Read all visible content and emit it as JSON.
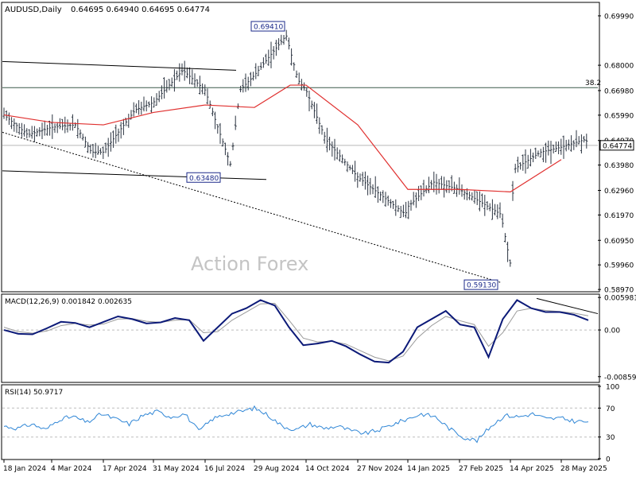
{
  "header": {
    "symbol": "AUDUSD,Daily",
    "ohlc": "0.64695 0.64940 0.64695 0.64774"
  },
  "watermark": "Action Forex",
  "colors": {
    "bars": "#2b3440",
    "ma": "#e0302f",
    "macd": "#0c1a78",
    "signal": "#9a9a9a",
    "rsi": "#2f86d6",
    "grid_dash": "#bdbdbd",
    "label_border": "#1b2a8a",
    "current_bg": "#ffffff"
  },
  "chart_data": [
    {
      "type": "ohlc",
      "title": "AUDUSD,Daily",
      "ylim": [
        0.5891,
        0.705
      ],
      "y_tick_labels": [
        "0.69990",
        "0.68000",
        "0.66980",
        "0.65990",
        "0.64970",
        "0.63980",
        "0.62960",
        "0.61970",
        "0.60950",
        "0.59960",
        "0.58970"
      ],
      "x_tick_labels": [
        "18 Jan 2024",
        "4 Mar 2024",
        "17 Apr 2024",
        "31 May 2024",
        "16 Jul 2024",
        "29 Aug 2024",
        "14 Oct 2024",
        "27 Nov 2024",
        "14 Jan 2025",
        "27 Feb 2025",
        "14 Apr 2025",
        "28 May 2025"
      ],
      "close_path": [
        [
          "18 Jan 2024",
          0.66
        ],
        [
          "Feb 2024",
          0.652
        ],
        [
          "4 Mar 2024",
          0.655
        ],
        [
          "Mar 2024",
          0.656
        ],
        [
          "Apr 2024",
          0.645
        ],
        [
          "17 Apr 2024",
          0.645
        ],
        [
          "May 2024",
          0.662
        ],
        [
          "31 May 2024",
          0.665
        ],
        [
          "Jul 2024",
          0.678
        ],
        [
          "16 Jul 2024",
          0.67
        ],
        [
          "Aug 2024",
          0.64
        ],
        [
          "Aug 2024",
          0.67
        ],
        [
          "29 Aug 2024",
          0.676
        ],
        [
          "Sep 2024",
          0.692
        ],
        [
          "Oct 2024",
          0.674
        ],
        [
          "14 Oct 2024",
          0.67
        ],
        [
          "Nov 2024",
          0.65
        ],
        [
          "27 Nov 2024",
          0.635
        ],
        [
          "Dec 2024",
          0.62
        ],
        [
          "14 Jan 2025",
          0.623
        ],
        [
          "Feb 2025",
          0.633
        ],
        [
          "27 Feb 2025",
          0.63
        ],
        [
          "Apr 2025",
          0.62
        ],
        [
          "Apr 2025",
          0.6
        ],
        [
          "14 Apr 2025",
          0.638
        ],
        [
          "May 2025",
          0.645
        ],
        [
          "28 May 2025",
          0.647
        ],
        [
          "Jun 2025",
          0.65
        ],
        [
          "Jun 2025",
          0.6477
        ]
      ],
      "moving_average_path": [
        [
          "18 Jan 2024",
          0.66
        ],
        [
          "4 Mar 2024",
          0.657
        ],
        [
          "17 Apr 2024",
          0.656
        ],
        [
          "31 May 2024",
          0.661
        ],
        [
          "16 Jul 2024",
          0.664
        ],
        [
          "29 Aug 2024",
          0.663
        ],
        [
          "Sep 2024",
          0.672
        ],
        [
          "14 Oct 2024",
          0.672
        ],
        [
          "27 Nov 2024",
          0.656
        ],
        [
          "14 Jan 2025",
          0.63
        ],
        [
          "27 Feb 2025",
          0.63
        ],
        [
          "14 Apr 2025",
          0.629
        ],
        [
          "28 May 2025",
          0.642
        ]
      ],
      "levels": {
        "fib_38_2": 0.671,
        "current": 0.64774
      },
      "level_labels": {
        "fib": "38.2",
        "current": "0.64774"
      },
      "annotations": [
        {
          "label": "0.69410",
          "x": "Sep 2024",
          "y": 0.6941
        },
        {
          "label": "0.63480",
          "x": "Jul 2024",
          "y": 0.6348
        },
        {
          "label": "0.59130",
          "x": "Apr 2025",
          "y": 0.5913
        }
      ],
      "trendlines": [
        {
          "style": "solid",
          "from": [
            "18 Jan 2024",
            0.6815
          ],
          "to": [
            "Aug 2024",
            0.678
          ]
        },
        {
          "style": "solid",
          "from": [
            "18 Jan 2024",
            0.6375
          ],
          "to": [
            "Sep 2024",
            0.634
          ]
        },
        {
          "style": "dashed",
          "from": [
            "18 Jan 2024",
            0.653
          ],
          "to": [
            "Apr 2025",
            0.5925
          ]
        }
      ]
    },
    {
      "type": "line",
      "title": "MACD(12,26,9) 0.001842 0.002635",
      "ylim": [
        -0.0095,
        0.0063
      ],
      "y_tick_labels": [
        "0.005981",
        "0.00",
        "-0.00859"
      ],
      "series": [
        {
          "name": "MACD",
          "values": [
            0.0,
            -0.0007,
            -0.0008,
            0.0003,
            0.0015,
            0.0013,
            0.0005,
            0.0015,
            0.0025,
            0.002,
            0.0012,
            0.0014,
            0.0022,
            0.0018,
            -0.002,
            0.0005,
            0.003,
            0.004,
            0.0055,
            0.0045,
            0.0005,
            -0.0028,
            -0.0025,
            -0.002,
            -0.003,
            -0.0045,
            -0.0058,
            -0.006,
            -0.004,
            0.0005,
            0.002,
            0.0035,
            0.001,
            0.0005,
            -0.005,
            0.002,
            0.0055,
            0.004,
            0.0033,
            0.0033,
            0.0028,
            0.0018
          ]
        },
        {
          "name": "Signal",
          "values": [
            0.0005,
            -0.0003,
            -0.0006,
            -0.0002,
            0.0008,
            0.0012,
            0.0009,
            0.0011,
            0.002,
            0.0021,
            0.0016,
            0.0014,
            0.0018,
            0.0019,
            -0.0005,
            -0.0003,
            0.0018,
            0.0033,
            0.0048,
            0.0049,
            0.0018,
            -0.0015,
            -0.0022,
            -0.0021,
            -0.0026,
            -0.0038,
            -0.005,
            -0.0057,
            -0.0048,
            -0.0015,
            0.0008,
            0.0025,
            0.0017,
            0.001,
            -0.003,
            -0.0005,
            0.0035,
            0.004,
            0.0036,
            0.0034,
            0.0031,
            0.0026
          ]
        }
      ]
    },
    {
      "type": "line",
      "title": "RSI(14) 50.9717",
      "ylim": [
        0,
        100
      ],
      "y_tick_labels": [
        "100",
        "70",
        "30",
        "0"
      ],
      "series": [
        {
          "name": "RSI",
          "values": [
            45,
            42,
            48,
            40,
            55,
            58,
            50,
            62,
            55,
            48,
            60,
            65,
            58,
            62,
            38,
            55,
            62,
            65,
            70,
            60,
            45,
            40,
            48,
            42,
            45,
            38,
            35,
            40,
            48,
            55,
            62,
            58,
            42,
            30,
            25,
            45,
            60,
            58,
            62,
            55,
            56,
            52,
            51
          ]
        }
      ]
    }
  ]
}
